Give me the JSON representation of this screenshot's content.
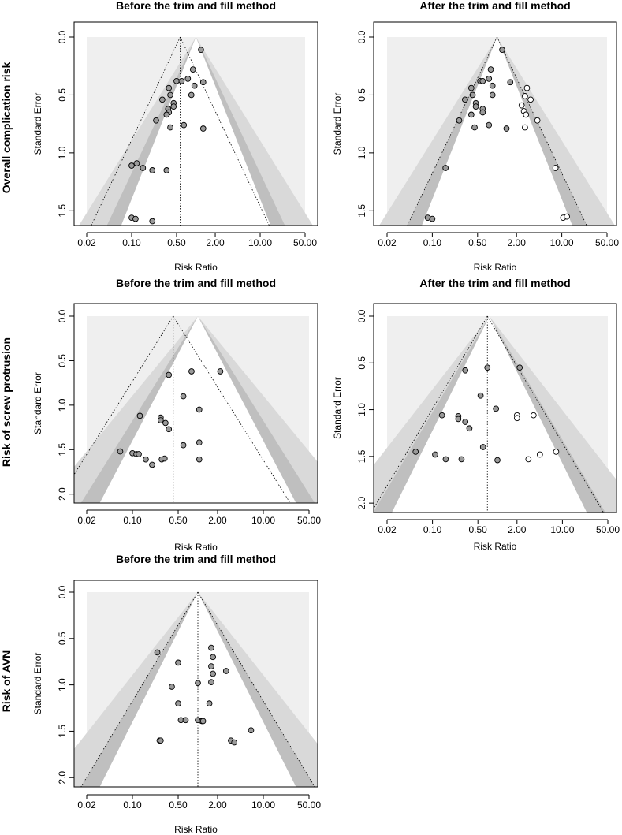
{
  "row_labels": [
    "Overall complication risk",
    "Risk of screw protrusion",
    "Risk of AVN"
  ],
  "chart_data": [
    {
      "type": "scatter",
      "subtype": "funnel",
      "title": "Before the trim and fill method",
      "xlabel": "Risk Ratio",
      "ylabel": "Standard Error",
      "x_scale": "log",
      "xlim": [
        0.02,
        50
      ],
      "ylim": [
        1.6,
        0
      ],
      "xticks": [
        "0.02",
        "0.10",
        "0.50",
        "2.00",
        "10.00",
        "50.00"
      ],
      "xtick_values": [
        0.02,
        0.1,
        0.5,
        2,
        10,
        50
      ],
      "yticks": [
        "0.0",
        "0.5",
        "1.0",
        "1.5"
      ],
      "ytick_values": [
        0,
        0.5,
        1,
        1.5
      ],
      "pooled_rr": 0.57,
      "funnel_apex_rr": 1.0,
      "funnel_shading": "light gray rectangle; gray bands from 90% to 99% limits",
      "points": [
        {
          "rr": 1.2,
          "se": 0.11,
          "imputed": false
        },
        {
          "rr": 0.9,
          "se": 0.28,
          "imputed": false
        },
        {
          "rr": 0.75,
          "se": 0.36,
          "imputed": false
        },
        {
          "rr": 0.5,
          "se": 0.38,
          "imputed": false
        },
        {
          "rr": 0.6,
          "se": 0.38,
          "imputed": false
        },
        {
          "rr": 1.3,
          "se": 0.39,
          "imputed": false
        },
        {
          "rr": 0.95,
          "se": 0.42,
          "imputed": false
        },
        {
          "rr": 0.38,
          "se": 0.44,
          "imputed": false
        },
        {
          "rr": 0.4,
          "se": 0.5,
          "imputed": false
        },
        {
          "rr": 0.85,
          "se": 0.5,
          "imputed": false
        },
        {
          "rr": 0.3,
          "se": 0.54,
          "imputed": false
        },
        {
          "rr": 0.45,
          "se": 0.57,
          "imputed": false
        },
        {
          "rr": 0.45,
          "se": 0.6,
          "imputed": false
        },
        {
          "rr": 0.37,
          "se": 0.62,
          "imputed": false
        },
        {
          "rr": 0.38,
          "se": 0.65,
          "imputed": false
        },
        {
          "rr": 0.35,
          "se": 0.67,
          "imputed": false
        },
        {
          "rr": 0.24,
          "se": 0.72,
          "imputed": false
        },
        {
          "rr": 0.65,
          "se": 0.76,
          "imputed": false
        },
        {
          "rr": 0.4,
          "se": 0.78,
          "imputed": false
        },
        {
          "rr": 1.3,
          "se": 0.79,
          "imputed": false
        },
        {
          "rr": 0.12,
          "se": 1.09,
          "imputed": false
        },
        {
          "rr": 0.1,
          "se": 1.11,
          "imputed": false
        },
        {
          "rr": 0.15,
          "se": 1.13,
          "imputed": false
        },
        {
          "rr": 0.21,
          "se": 1.15,
          "imputed": false
        },
        {
          "rr": 0.35,
          "se": 1.15,
          "imputed": false
        },
        {
          "rr": 0.1,
          "se": 1.56,
          "imputed": false
        },
        {
          "rr": 0.115,
          "se": 1.57,
          "imputed": false
        },
        {
          "rr": 0.21,
          "se": 1.59,
          "imputed": false
        }
      ]
    },
    {
      "type": "scatter",
      "subtype": "funnel",
      "title": "After the trim and fill method",
      "xlabel": "Risk Ratio",
      "ylabel": "Standard Error",
      "x_scale": "log",
      "xlim": [
        0.02,
        50
      ],
      "ylim": [
        1.6,
        0
      ],
      "xticks": [
        "0.02",
        "0.10",
        "0.50",
        "2.00",
        "10.00",
        "50.00"
      ],
      "xtick_values": [
        0.02,
        0.1,
        0.5,
        2,
        10,
        50
      ],
      "yticks": [
        "0.0",
        "0.5",
        "1.0",
        "1.5"
      ],
      "yticks_values_note": "tick positions in SE units",
      "ytick_values": [
        0,
        0.5,
        1,
        1.5
      ],
      "pooled_rr": 1.0,
      "funnel_apex_rr": 1.0,
      "points": [
        {
          "rr": 1.2,
          "se": 0.11,
          "imputed": false
        },
        {
          "rr": 0.8,
          "se": 0.28,
          "imputed": false
        },
        {
          "rr": 0.55,
          "se": 0.38,
          "imputed": false
        },
        {
          "rr": 0.6,
          "se": 0.38,
          "imputed": false
        },
        {
          "rr": 0.75,
          "se": 0.36,
          "imputed": false
        },
        {
          "rr": 1.6,
          "se": 0.39,
          "imputed": false
        },
        {
          "rr": 0.85,
          "se": 0.42,
          "imputed": false
        },
        {
          "rr": 0.4,
          "se": 0.44,
          "imputed": false
        },
        {
          "rr": 0.42,
          "se": 0.5,
          "imputed": false
        },
        {
          "rr": 0.85,
          "se": 0.5,
          "imputed": false
        },
        {
          "rr": 0.32,
          "se": 0.54,
          "imputed": false
        },
        {
          "rr": 0.47,
          "se": 0.57,
          "imputed": false
        },
        {
          "rr": 0.47,
          "se": 0.6,
          "imputed": false
        },
        {
          "rr": 0.6,
          "se": 0.62,
          "imputed": false
        },
        {
          "rr": 0.6,
          "se": 0.65,
          "imputed": false
        },
        {
          "rr": 0.4,
          "se": 0.67,
          "imputed": false
        },
        {
          "rr": 0.26,
          "se": 0.72,
          "imputed": false
        },
        {
          "rr": 0.75,
          "se": 0.76,
          "imputed": false
        },
        {
          "rr": 0.45,
          "se": 0.78,
          "imputed": false
        },
        {
          "rr": 1.4,
          "se": 0.79,
          "imputed": false
        },
        {
          "rr": 0.16,
          "se": 1.13,
          "imputed": false
        },
        {
          "rr": 0.085,
          "se": 1.56,
          "imputed": false
        },
        {
          "rr": 0.1,
          "se": 1.57,
          "imputed": false
        },
        {
          "rr": 2.9,
          "se": 0.44,
          "imputed": true
        },
        {
          "rr": 2.7,
          "se": 0.51,
          "imputed": true
        },
        {
          "rr": 3.3,
          "se": 0.54,
          "imputed": true
        },
        {
          "rr": 2.4,
          "se": 0.59,
          "imputed": true
        },
        {
          "rr": 2.6,
          "se": 0.64,
          "imputed": true
        },
        {
          "rr": 2.8,
          "se": 0.67,
          "imputed": true
        },
        {
          "rr": 4.2,
          "se": 0.72,
          "imputed": true
        },
        {
          "rr": 2.7,
          "se": 0.78,
          "imputed": true
        },
        {
          "rr": 8.0,
          "se": 1.13,
          "imputed": true
        },
        {
          "rr": 10.5,
          "se": 1.56,
          "imputed": true
        },
        {
          "rr": 12.0,
          "se": 1.55,
          "imputed": true
        }
      ]
    },
    {
      "type": "scatter",
      "subtype": "funnel",
      "title": "Before the trim and fill method",
      "xlabel": "Risk Ratio",
      "ylabel": "Standard Error",
      "x_scale": "log",
      "xlim": [
        0.02,
        50
      ],
      "ylim": [
        2.1,
        0
      ],
      "xticks": [
        "0.02",
        "0.10",
        "0.50",
        "2.00",
        "10.00",
        "50.00"
      ],
      "xtick_values": [
        0.02,
        0.1,
        0.5,
        2,
        10,
        50
      ],
      "yticks": [
        "0.0",
        "0.5",
        "1.0",
        "1.5",
        "2.0"
      ],
      "ytick_values": [
        0,
        0.5,
        1,
        1.5,
        2
      ],
      "pooled_rr": 0.42,
      "funnel_apex_rr": 1.0,
      "points": [
        {
          "rr": 0.8,
          "se": 0.62,
          "imputed": false
        },
        {
          "rr": 2.2,
          "se": 0.62,
          "imputed": false
        },
        {
          "rr": 0.36,
          "se": 0.66,
          "imputed": false
        },
        {
          "rr": 0.6,
          "se": 0.9,
          "imputed": false
        },
        {
          "rr": 1.05,
          "se": 1.05,
          "imputed": false
        },
        {
          "rr": 0.13,
          "se": 1.12,
          "imputed": false
        },
        {
          "rr": 0.27,
          "se": 1.14,
          "imputed": false
        },
        {
          "rr": 0.27,
          "se": 1.17,
          "imputed": false
        },
        {
          "rr": 0.32,
          "se": 1.2,
          "imputed": false
        },
        {
          "rr": 0.36,
          "se": 1.27,
          "imputed": false
        },
        {
          "rr": 1.05,
          "se": 1.42,
          "imputed": false
        },
        {
          "rr": 0.6,
          "se": 1.45,
          "imputed": false
        },
        {
          "rr": 0.065,
          "se": 1.52,
          "imputed": false
        },
        {
          "rr": 0.1,
          "se": 1.54,
          "imputed": false
        },
        {
          "rr": 0.115,
          "se": 1.55,
          "imputed": false
        },
        {
          "rr": 0.125,
          "se": 1.55,
          "imputed": false
        },
        {
          "rr": 0.16,
          "se": 1.61,
          "imputed": false
        },
        {
          "rr": 0.28,
          "se": 1.61,
          "imputed": false
        },
        {
          "rr": 0.31,
          "se": 1.6,
          "imputed": false
        },
        {
          "rr": 1.05,
          "se": 1.61,
          "imputed": false
        },
        {
          "rr": 0.2,
          "se": 1.67,
          "imputed": false
        }
      ]
    },
    {
      "type": "scatter",
      "subtype": "funnel",
      "title": "After the trim and fill method",
      "xlabel": "Risk Ratio",
      "ylabel": "Standard Error",
      "x_scale": "log",
      "xlim": [
        0.02,
        50
      ],
      "ylim": [
        2.1,
        0
      ],
      "xticks": [
        "0.02",
        "0.10",
        "0.50",
        "2.00",
        "10.00",
        "50.00"
      ],
      "xtick_values": [
        0.02,
        0.1,
        0.5,
        2,
        10,
        50
      ],
      "yticks": [
        "0.0",
        "0.5",
        "1.0",
        "1.5",
        "2.0"
      ],
      "ytick_values": [
        0,
        0.5,
        1,
        1.5,
        2
      ],
      "pooled_rr": 0.7,
      "funnel_apex_rr": 0.75,
      "points": [
        {
          "rr": 0.7,
          "se": 0.55,
          "imputed": false
        },
        {
          "rr": 2.2,
          "se": 0.55,
          "imputed": false
        },
        {
          "rr": 0.32,
          "se": 0.58,
          "imputed": false
        },
        {
          "rr": 0.55,
          "se": 0.85,
          "imputed": false
        },
        {
          "rr": 0.95,
          "se": 0.99,
          "imputed": false
        },
        {
          "rr": 0.14,
          "se": 1.06,
          "imputed": false
        },
        {
          "rr": 0.25,
          "se": 1.07,
          "imputed": false
        },
        {
          "rr": 0.25,
          "se": 1.1,
          "imputed": false
        },
        {
          "rr": 0.32,
          "se": 1.13,
          "imputed": false
        },
        {
          "rr": 0.37,
          "se": 1.2,
          "imputed": false
        },
        {
          "rr": 0.6,
          "se": 1.4,
          "imputed": false
        },
        {
          "rr": 0.055,
          "se": 1.45,
          "imputed": false
        },
        {
          "rr": 0.11,
          "se": 1.48,
          "imputed": false
        },
        {
          "rr": 0.16,
          "se": 1.53,
          "imputed": false
        },
        {
          "rr": 0.28,
          "se": 1.53,
          "imputed": false
        },
        {
          "rr": 1.0,
          "se": 1.54,
          "imputed": false
        },
        {
          "rr": 2.0,
          "se": 1.06,
          "imputed": true
        },
        {
          "rr": 2.0,
          "se": 1.09,
          "imputed": true
        },
        {
          "rr": 3.6,
          "se": 1.06,
          "imputed": true
        },
        {
          "rr": 8.0,
          "se": 1.45,
          "imputed": true
        },
        {
          "rr": 4.5,
          "se": 1.48,
          "imputed": true
        },
        {
          "rr": 3.0,
          "se": 1.53,
          "imputed": true
        }
      ]
    },
    {
      "type": "scatter",
      "subtype": "funnel",
      "title": "Before the trim and fill method",
      "xlabel": "Risk Ratio",
      "ylabel": "Standard Error",
      "x_scale": "log",
      "xlim": [
        0.02,
        50
      ],
      "ylim": [
        2.1,
        0
      ],
      "xticks": [
        "0.02",
        "0.10",
        "0.50",
        "2.00",
        "10.00",
        "50.00"
      ],
      "xtick_values": [
        0.02,
        0.1,
        0.5,
        2,
        10,
        50
      ],
      "yticks": [
        "0.0",
        "0.5",
        "1.0",
        "1.5",
        "2.0"
      ],
      "ytick_values": [
        0,
        0.5,
        1,
        1.5,
        2
      ],
      "pooled_rr": 1.0,
      "funnel_apex_rr": 1.0,
      "points": [
        {
          "rr": 0.24,
          "se": 0.65,
          "imputed": false
        },
        {
          "rr": 1.6,
          "se": 0.6,
          "imputed": false
        },
        {
          "rr": 1.7,
          "se": 0.7,
          "imputed": false
        },
        {
          "rr": 0.5,
          "se": 0.76,
          "imputed": false
        },
        {
          "rr": 1.6,
          "se": 0.8,
          "imputed": false
        },
        {
          "rr": 2.7,
          "se": 0.85,
          "imputed": false
        },
        {
          "rr": 1.7,
          "se": 0.88,
          "imputed": false
        },
        {
          "rr": 1.6,
          "se": 0.97,
          "imputed": false
        },
        {
          "rr": 1.0,
          "se": 0.98,
          "imputed": false
        },
        {
          "rr": 0.4,
          "se": 1.02,
          "imputed": false
        },
        {
          "rr": 0.5,
          "se": 1.2,
          "imputed": false
        },
        {
          "rr": 1.5,
          "se": 1.2,
          "imputed": false
        },
        {
          "rr": 0.55,
          "se": 1.38,
          "imputed": false
        },
        {
          "rr": 0.65,
          "se": 1.38,
          "imputed": false
        },
        {
          "rr": 1.0,
          "se": 1.38,
          "imputed": false
        },
        {
          "rr": 1.15,
          "se": 1.39,
          "imputed": false
        },
        {
          "rr": 1.2,
          "se": 1.39,
          "imputed": false
        },
        {
          "rr": 6.5,
          "se": 1.49,
          "imputed": false
        },
        {
          "rr": 0.26,
          "se": 1.6,
          "imputed": false
        },
        {
          "rr": 0.27,
          "se": 1.6,
          "imputed": false
        },
        {
          "rr": 3.2,
          "se": 1.6,
          "imputed": false
        },
        {
          "rr": 3.6,
          "se": 1.62,
          "imputed": false
        }
      ]
    }
  ]
}
